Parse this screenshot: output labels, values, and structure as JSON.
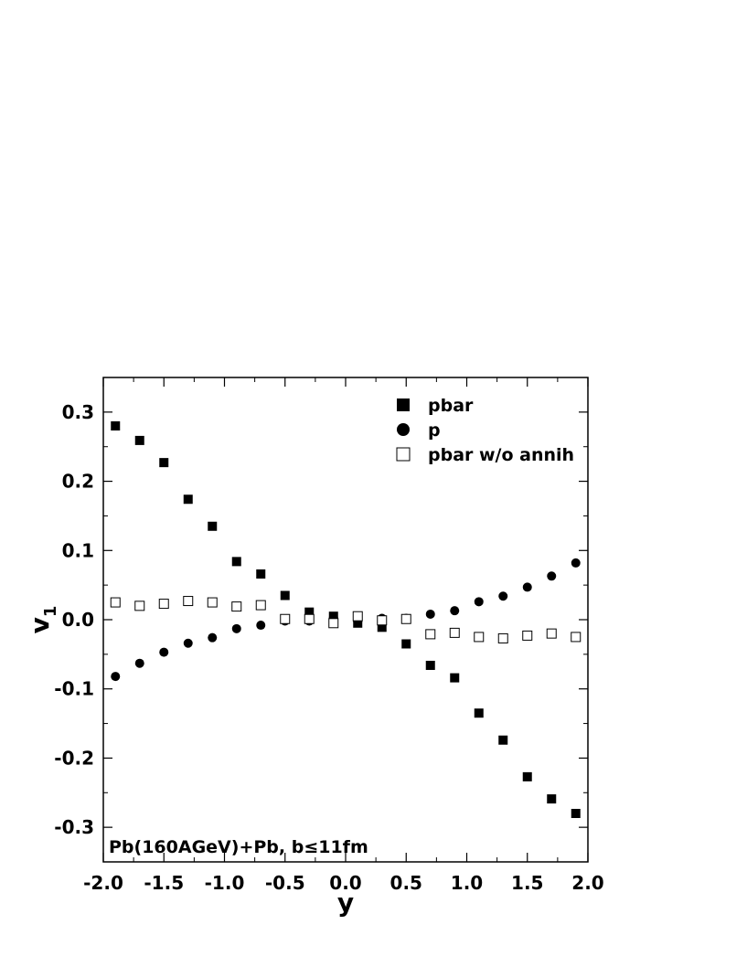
{
  "chart_data": {
    "type": "scatter",
    "xlabel": "y",
    "ylabel": "v",
    "ylabel_sub": "1",
    "xlim": [
      -2.0,
      2.0
    ],
    "ylim": [
      -0.35,
      0.35
    ],
    "x_ticks": [
      "-2.0",
      "-1.5",
      "-1.0",
      "-0.5",
      "0.0",
      "0.5",
      "1.0",
      "1.5",
      "2.0"
    ],
    "y_ticks": [
      "-0.3",
      "-0.2",
      "-0.1",
      "0.0",
      "0.1",
      "0.2",
      "0.3"
    ],
    "legend_position": "top-right",
    "annotation": "Pb(160AGeV)+Pb, b≤11fm",
    "x": [
      -1.9,
      -1.7,
      -1.5,
      -1.3,
      -1.1,
      -0.9,
      -0.7,
      -0.5,
      -0.3,
      -0.1,
      0.1,
      0.3,
      0.5,
      0.7,
      0.9,
      1.1,
      1.3,
      1.5,
      1.7,
      1.9
    ],
    "series": [
      {
        "name": "pbar",
        "marker": "filled-square",
        "color": "#000000",
        "values": [
          0.28,
          0.259,
          0.227,
          0.174,
          0.135,
          0.084,
          0.066,
          0.035,
          0.011,
          0.005,
          -0.005,
          -0.011,
          -0.035,
          -0.066,
          -0.084,
          -0.135,
          -0.174,
          -0.227,
          -0.259,
          -0.28
        ]
      },
      {
        "name": "p",
        "marker": "filled-circle",
        "color": "#000000",
        "values": [
          -0.082,
          -0.063,
          -0.047,
          -0.034,
          -0.026,
          -0.013,
          -0.008,
          -0.002,
          -0.002,
          0.003,
          -0.003,
          0.002,
          0.002,
          0.008,
          0.013,
          0.026,
          0.034,
          0.047,
          0.063,
          0.082
        ]
      },
      {
        "name": "pbar w/o annih",
        "marker": "open-square",
        "color": "#000000",
        "values": [
          0.025,
          0.02,
          0.023,
          0.027,
          0.025,
          0.019,
          0.021,
          0.001,
          0.001,
          -0.005,
          0.005,
          -0.001,
          0.001,
          -0.021,
          -0.019,
          -0.025,
          -0.027,
          -0.023,
          -0.02,
          -0.025
        ]
      }
    ]
  }
}
